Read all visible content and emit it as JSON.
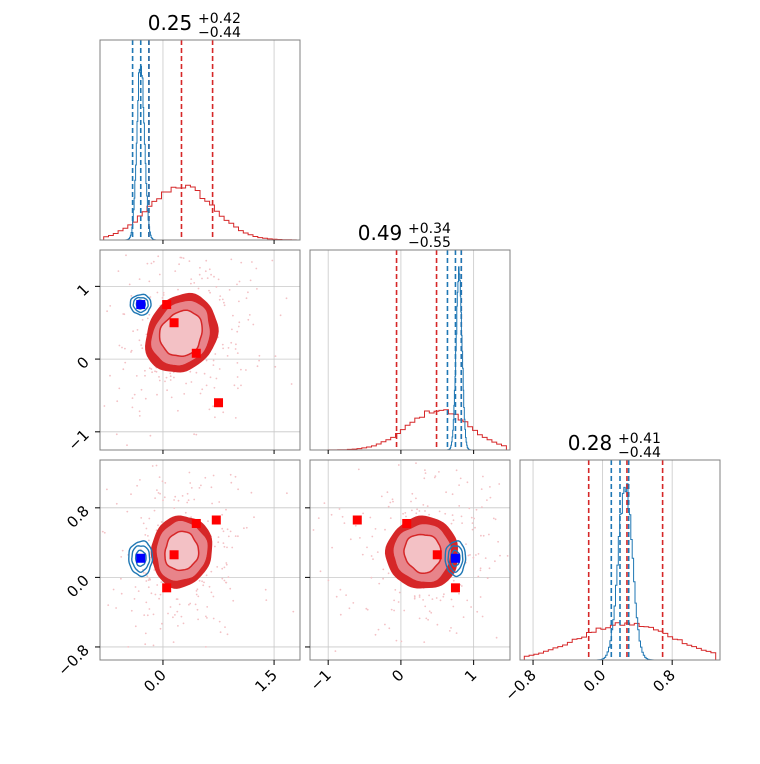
{
  "chart_data": {
    "type": "corner",
    "colors": {
      "red": "#d62728",
      "red_mid": "#e8848a",
      "red_light": "#f3c1c5",
      "blue": "#1f77b4",
      "marker_blue": "#0000ff",
      "marker_red": "#ff0000"
    },
    "axes_ranges": {
      "p1": [
        -0.85,
        1.85
      ],
      "p2": [
        -1.25,
        1.5
      ],
      "p3": [
        -0.95,
        1.35
      ]
    },
    "ticks": {
      "p1": [
        {
          "v": 0.0,
          "label": "0.0"
        },
        {
          "v": 1.5,
          "label": "1.5"
        }
      ],
      "p2": [
        {
          "v": -1,
          "label": "−1"
        },
        {
          "v": 0,
          "label": "0"
        },
        {
          "v": 1,
          "label": "1"
        }
      ],
      "p3": [
        {
          "v": -0.8,
          "label": "−0.8"
        },
        {
          "v": 0.0,
          "label": "0.0"
        },
        {
          "v": 0.8,
          "label": "0.8"
        }
      ]
    },
    "titles": [
      {
        "value": "0.25",
        "plus": "+0.42",
        "minus": "−0.44"
      },
      {
        "value": "0.49",
        "plus": "+0.34",
        "minus": "−0.55"
      },
      {
        "value": "0.28",
        "plus": "+0.41",
        "minus": "−0.44"
      }
    ],
    "diagonal": [
      {
        "param": "p1",
        "red_hist": {
          "mu": 0.25,
          "sigma": 0.43,
          "peak": 0.27
        },
        "blue_hist": {
          "mu": -0.3,
          "sigma": 0.05,
          "peak": 0.9
        },
        "red_quantiles": [
          -0.19,
          0.25,
          0.67
        ],
        "blue_quantiles": [
          -0.41,
          -0.3,
          -0.19
        ]
      },
      {
        "param": "p2",
        "red_hist": {
          "mu": 0.52,
          "sigma": 0.42,
          "peak": 0.2
        },
        "blue_hist": {
          "mu": 0.8,
          "sigma": 0.04,
          "peak": 0.9
        },
        "red_quantiles": [
          -0.06,
          0.49,
          0.83
        ],
        "blue_quantiles": [
          0.64,
          0.75,
          0.83
        ]
      },
      {
        "param": "p3",
        "red_hist": {
          "mu": 0.28,
          "sigma": 0.55,
          "peak": 0.18
        },
        "blue_hist": {
          "mu": 0.26,
          "sigma": 0.08,
          "peak": 0.88
        },
        "red_quantiles": [
          -0.16,
          0.28,
          0.69
        ],
        "blue_quantiles": [
          0.1,
          0.2,
          0.3
        ]
      }
    ],
    "panels_2d": [
      {
        "x": "p1",
        "y": "p2",
        "red_center": [
          0.25,
          0.35
        ],
        "red_rx": [
          0.55,
          0.75,
          0.9
        ],
        "red_ry": [
          0.65,
          0.95,
          1.12
        ],
        "red_rot": 0.55,
        "blue_center": [
          -0.3,
          0.75
        ],
        "blue_rx": [
          0.06,
          0.1,
          0.14
        ],
        "blue_ry": [
          0.06,
          0.1,
          0.14
        ],
        "red_markers": [
          [
            0.05,
            0.75
          ],
          [
            0.15,
            0.5
          ],
          [
            0.45,
            0.08
          ],
          [
            0.75,
            -0.6
          ]
        ],
        "blue_marker": [
          -0.3,
          0.75
        ]
      },
      {
        "x": "p1",
        "y": "p3",
        "red_center": [
          0.25,
          0.3
        ],
        "red_rx": [
          0.45,
          0.7,
          0.8
        ],
        "red_ry": [
          0.45,
          0.7,
          0.82
        ],
        "red_rot": 0.2,
        "blue_center": [
          -0.3,
          0.22
        ],
        "blue_rx": [
          0.07,
          0.12,
          0.16
        ],
        "blue_ry": [
          0.09,
          0.15,
          0.2
        ],
        "red_markers": [
          [
            0.45,
            0.62
          ],
          [
            0.72,
            0.66
          ],
          [
            0.15,
            0.26
          ],
          [
            0.05,
            -0.12
          ]
        ],
        "blue_marker": [
          -0.3,
          0.22
        ]
      },
      {
        "x": "p2",
        "y": "p3",
        "red_center": [
          0.3,
          0.28
        ],
        "red_rx": [
          0.5,
          0.8,
          0.98
        ],
        "red_ry": [
          0.45,
          0.68,
          0.82
        ],
        "red_rot": -0.45,
        "blue_center": [
          0.75,
          0.22
        ],
        "blue_rx": [
          0.06,
          0.1,
          0.14
        ],
        "blue_ry": [
          0.09,
          0.15,
          0.2
        ],
        "red_markers": [
          [
            -0.6,
            0.66
          ],
          [
            0.08,
            0.62
          ],
          [
            0.5,
            0.26
          ],
          [
            0.75,
            -0.12
          ]
        ],
        "blue_marker": [
          0.75,
          0.22
        ]
      }
    ],
    "grid": true
  }
}
